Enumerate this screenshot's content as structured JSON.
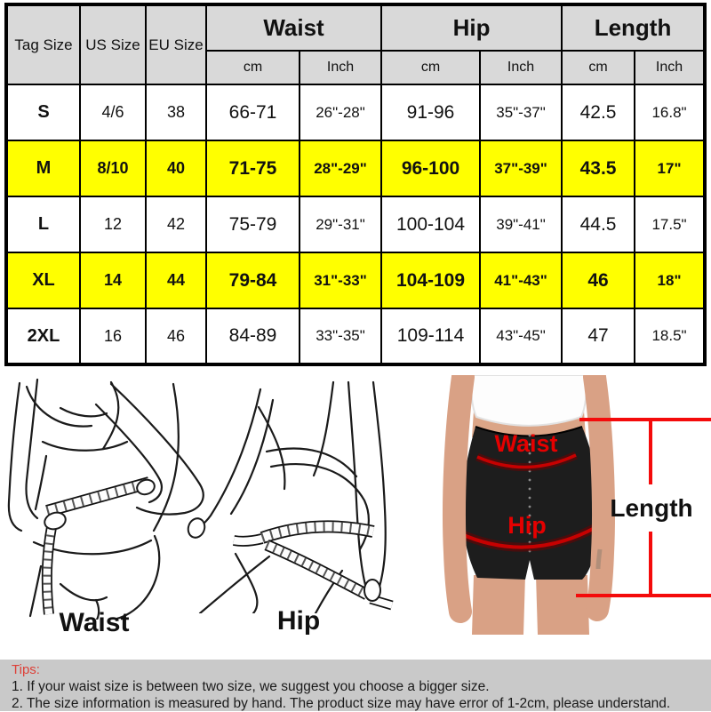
{
  "table": {
    "headers": {
      "tag_size": "Tag Size",
      "us_size": "US Size",
      "eu_size": "EU Size",
      "waist": "Waist",
      "hip": "Hip",
      "length": "Length",
      "cm": "cm",
      "inch": "Inch"
    },
    "rows": [
      {
        "tag": "S",
        "us": "4/6",
        "eu": "38",
        "waist_cm": "66-71",
        "waist_in": "26\"-28\"",
        "hip_cm": "91-96",
        "hip_in": "35\"-37\"",
        "len_cm": "42.5",
        "len_in": "16.8\"",
        "highlight": false
      },
      {
        "tag": "M",
        "us": "8/10",
        "eu": "40",
        "waist_cm": "71-75",
        "waist_in": "28\"-29\"",
        "hip_cm": "96-100",
        "hip_in": "37\"-39\"",
        "len_cm": "43.5",
        "len_in": "17\"",
        "highlight": true
      },
      {
        "tag": "L",
        "us": "12",
        "eu": "42",
        "waist_cm": "75-79",
        "waist_in": "29\"-31\"",
        "hip_cm": "100-104",
        "hip_in": "39\"-41\"",
        "len_cm": "44.5",
        "len_in": "17.5\"",
        "highlight": false
      },
      {
        "tag": "XL",
        "us": "14",
        "eu": "44",
        "waist_cm": "79-84",
        "waist_in": "31\"-33\"",
        "hip_cm": "104-109",
        "hip_in": "41\"-43\"",
        "len_cm": "46",
        "len_in": "18\"",
        "highlight": true
      },
      {
        "tag": "2XL",
        "us": "16",
        "eu": "46",
        "waist_cm": "84-89",
        "waist_in": "33\"-35\"",
        "hip_cm": "109-114",
        "hip_in": "43\"-45\"",
        "len_cm": "47",
        "len_in": "18.5\"",
        "highlight": false
      }
    ],
    "highlight_color": "#ffff00",
    "header_bg": "#d9d9d9"
  },
  "diagram": {
    "waist_label": "Waist",
    "hip_label": "Hip"
  },
  "photo": {
    "waist_label": "Waist",
    "hip_label": "Hip",
    "length_label": "Length",
    "annotation_color": "#f40b0b",
    "garment_text_color": "#e50000"
  },
  "tips": {
    "title": "Tips:",
    "title_color": "#dd4038",
    "bg": "#c9c9c9",
    "items": [
      "1. If your waist size is between two size, we suggest you choose a bigger size.",
      "2. The size information is measured by hand. The product size may have error of 1-2cm, please understand."
    ]
  }
}
